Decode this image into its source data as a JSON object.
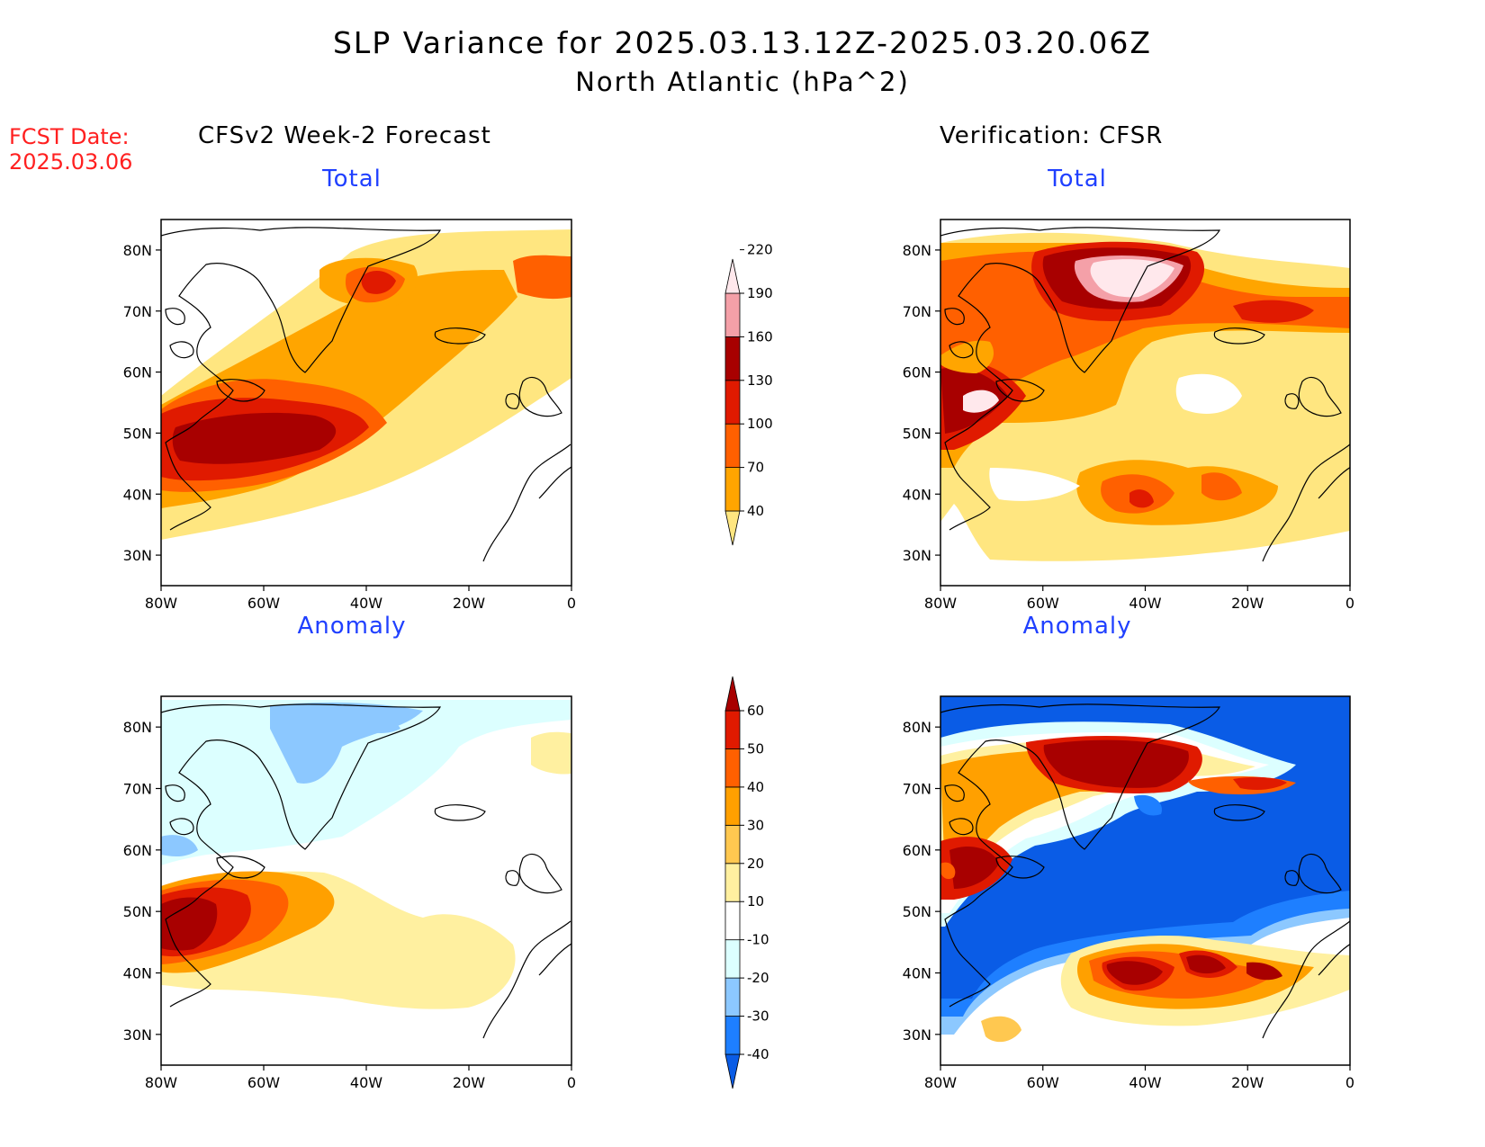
{
  "title": "SLP Variance for 2025.03.13.12Z-2025.03.20.06Z",
  "subtitle": "North Atlantic (hPa^2)",
  "forecast_date": {
    "label": "FCST Date:",
    "value": "2025.03.06"
  },
  "columns": {
    "left": "CFSv2 Week-2 Forecast",
    "right": "Verification: CFSR"
  },
  "panels": {
    "top_left": "Total",
    "top_right": "Total",
    "bottom_left": "Anomaly",
    "bottom_right": "Anomaly"
  },
  "axes": {
    "lat_ticks": [
      "80N",
      "70N",
      "60N",
      "50N",
      "40N",
      "30N"
    ],
    "lon_ticks": [
      "80W",
      "60W",
      "40W",
      "20W",
      "0"
    ],
    "lat_range": [
      25,
      85
    ],
    "lon_range": [
      -80,
      0
    ]
  },
  "total_colorbar": {
    "levels": [
      "40",
      "70",
      "100",
      "130",
      "160",
      "190",
      "220"
    ],
    "colors": [
      "#ffe680",
      "#ffa500",
      "#ff6000",
      "#e01a00",
      "#a80000",
      "#f4a0a8",
      "#ffe8ec"
    ]
  },
  "anomaly_colorbar": {
    "levels": [
      "-40",
      "-30",
      "-20",
      "-10",
      "10",
      "20",
      "30",
      "40",
      "50",
      "60"
    ],
    "colors": [
      "#0a5ce6",
      "#1e7fff",
      "#8cc8ff",
      "#dcffff",
      "#ffffff",
      "#fff0a0",
      "#ffc850",
      "#ffa000",
      "#ff6000",
      "#e01a00",
      "#a80000"
    ]
  },
  "colors": {
    "title_red": "#ff2020",
    "panel_blue": "#2040ff"
  }
}
